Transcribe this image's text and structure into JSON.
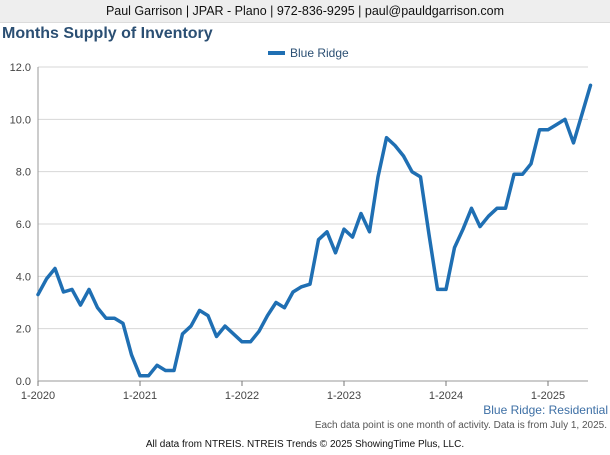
{
  "header": {
    "contact_line": "Paul Garrison | JPAR - Plano | 972-836-9295 | paul@pauldgarrison.com"
  },
  "footer": {
    "series_caption": "Blue Ridge: Residential",
    "note": "Each data point is one month of activity. Data is from July 1, 2025.",
    "source": "All data from NTREIS. NTREIS Trends © 2025 ShowingTime Plus, LLC."
  },
  "chart_data": {
    "type": "line",
    "title": "Months Supply of Inventory",
    "xlabel": "",
    "ylabel": "",
    "ylim": [
      0,
      12
    ],
    "yticks": [
      "0.0",
      "2.0",
      "4.0",
      "6.0",
      "8.0",
      "10.0",
      "12.0"
    ],
    "xticks": [
      "1-2020",
      "1-2021",
      "1-2022",
      "1-2023",
      "1-2024",
      "1-2025"
    ],
    "grid": true,
    "legend_position": "top-center",
    "colors": {
      "line": "#1f6fb3",
      "grid": "#d7d7d7",
      "axis_text": "#444444"
    },
    "series": [
      {
        "name": "Blue Ridge",
        "start": "1-2020",
        "values": [
          3.3,
          3.9,
          4.3,
          3.4,
          3.5,
          2.9,
          3.5,
          2.8,
          2.4,
          2.4,
          2.2,
          1.0,
          0.2,
          0.2,
          0.6,
          0.4,
          0.4,
          1.8,
          2.1,
          2.7,
          2.5,
          1.7,
          2.1,
          1.8,
          1.5,
          1.5,
          1.9,
          2.5,
          3.0,
          2.8,
          3.4,
          3.6,
          3.7,
          5.4,
          5.7,
          4.9,
          5.8,
          5.5,
          6.4,
          5.7,
          7.8,
          9.3,
          9.0,
          8.6,
          8.0,
          7.8,
          5.6,
          3.5,
          3.5,
          5.1,
          5.8,
          6.6,
          5.9,
          6.3,
          6.6,
          6.6,
          7.9,
          7.9,
          8.3,
          9.6,
          9.6,
          9.8,
          10.0,
          9.1,
          10.2,
          11.3
        ]
      }
    ]
  }
}
